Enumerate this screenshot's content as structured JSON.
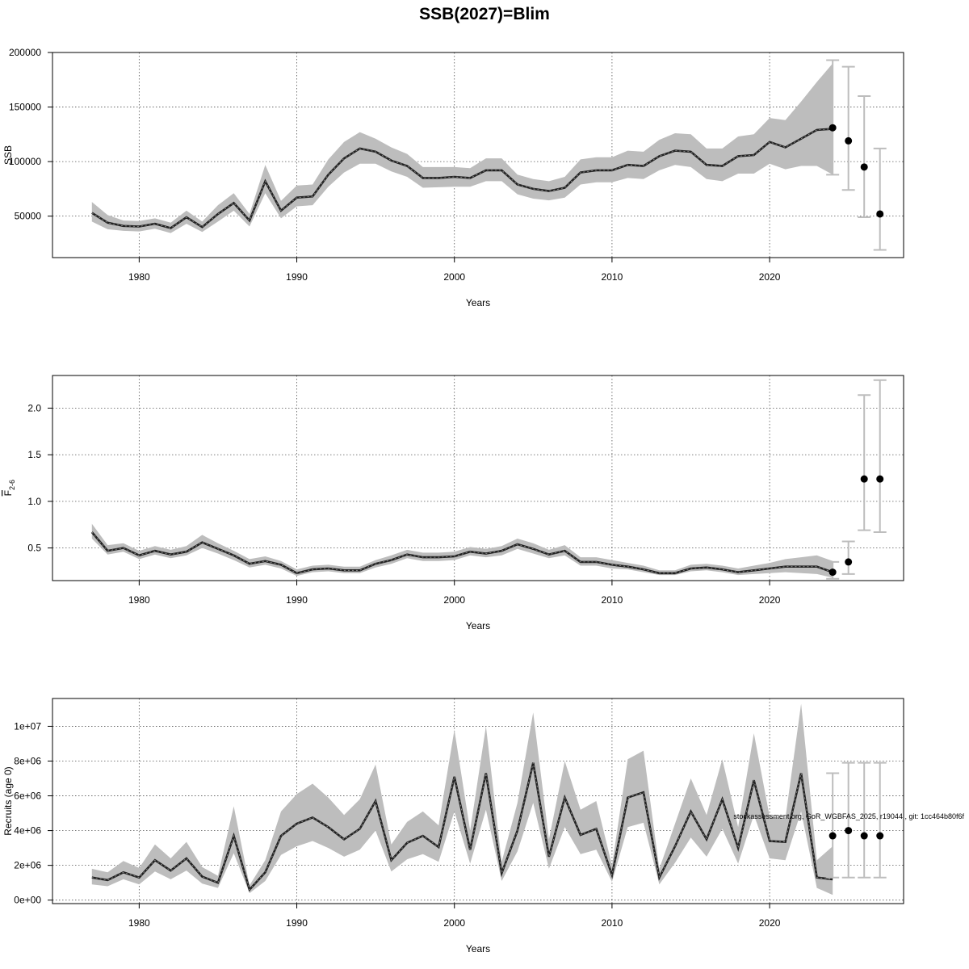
{
  "figure": {
    "title": "SSB(2027)=Blim",
    "footnote": "stockassessment.org, GoR_WGBFAS_2025, r19044 , git: 1cc464b80f6f"
  },
  "colors": {
    "band": "#bdbdbd",
    "line": "#222222",
    "errorbar": "#bdbdbd",
    "point": "#000000"
  },
  "chart_data": [
    {
      "type": "line",
      "panel": "ssb",
      "xlabel": "Years",
      "ylabel": "SSB",
      "xlim": [
        1974.5,
        2028.5
      ],
      "ylim": [
        12000,
        200000
      ],
      "xticks": [
        1980,
        1990,
        2000,
        2010,
        2020
      ],
      "yticks": [
        50000,
        100000,
        150000,
        200000
      ],
      "ytick_labels": [
        "50000",
        "100000",
        "150000",
        "200000"
      ],
      "grid": true,
      "x": [
        1977,
        1978,
        1979,
        1980,
        1981,
        1982,
        1983,
        1984,
        1985,
        1986,
        1987,
        1988,
        1989,
        1990,
        1991,
        1992,
        1993,
        1994,
        1995,
        1996,
        1997,
        1998,
        1999,
        2000,
        2001,
        2002,
        2003,
        2004,
        2005,
        2006,
        2007,
        2008,
        2009,
        2010,
        2011,
        2012,
        2013,
        2014,
        2015,
        2016,
        2017,
        2018,
        2019,
        2020,
        2021,
        2022,
        2023,
        2024
      ],
      "estimate": [
        53000,
        44000,
        41000,
        40500,
        43000,
        39000,
        49000,
        40000,
        52000,
        62000,
        46000,
        82000,
        55000,
        67000,
        68000,
        88000,
        103000,
        112000,
        109000,
        101000,
        96000,
        85000,
        85000,
        86000,
        85000,
        92000,
        92000,
        79000,
        75000,
        73000,
        76000,
        90000,
        92000,
        92000,
        97000,
        96000,
        105000,
        110000,
        109000,
        97000,
        96000,
        105000,
        106000,
        118000,
        113000,
        121000,
        129000,
        130000
      ],
      "lower": [
        45000,
        38000,
        36500,
        36000,
        38500,
        34500,
        43000,
        35500,
        45000,
        55000,
        40500,
        71000,
        48000,
        59000,
        60000,
        77000,
        90000,
        98000,
        98000,
        91000,
        86000,
        76000,
        76500,
        77000,
        77000,
        82000,
        82000,
        70000,
        66000,
        64500,
        67000,
        79000,
        81000,
        81000,
        85000,
        84000,
        92000,
        97000,
        95000,
        84000,
        82000,
        89000,
        89000,
        98000,
        93000,
        96000,
        96000,
        88000
      ],
      "upper": [
        63000,
        51000,
        46000,
        45500,
        48000,
        44000,
        55000,
        45000,
        60000,
        71000,
        52000,
        97000,
        64000,
        78000,
        79000,
        102000,
        118000,
        127000,
        121000,
        113000,
        107000,
        95000,
        95000,
        95000,
        94000,
        103000,
        103000,
        88000,
        84000,
        82000,
        86000,
        102000,
        104000,
        104000,
        110000,
        109000,
        120000,
        126000,
        125000,
        112000,
        112000,
        123000,
        125000,
        140000,
        138000,
        155000,
        173000,
        190000
      ],
      "forecast": {
        "x": [
          2024,
          2025,
          2026,
          2027
        ],
        "values": [
          131000,
          119000,
          95000,
          52000
        ],
        "lower": [
          88000,
          74000,
          49000,
          19000
        ],
        "upper": [
          193000,
          187000,
          160000,
          112000
        ]
      }
    },
    {
      "type": "line",
      "panel": "fbar",
      "xlabel": "Years",
      "ylabel": "F",
      "ylabel_subscript": "2-6",
      "xlim": [
        1974.5,
        2028.5
      ],
      "ylim": [
        0.15,
        2.35
      ],
      "xticks": [
        1980,
        1990,
        2000,
        2010,
        2020
      ],
      "yticks": [
        0.5,
        1.0,
        1.5,
        2.0
      ],
      "ytick_labels": [
        "0.5",
        "1.0",
        "1.5",
        "2.0"
      ],
      "grid": true,
      "x": [
        1977,
        1978,
        1979,
        1980,
        1981,
        1982,
        1983,
        1984,
        1985,
        1986,
        1987,
        1988,
        1989,
        1990,
        1991,
        1992,
        1993,
        1994,
        1995,
        1996,
        1997,
        1998,
        1999,
        2000,
        2001,
        2002,
        2003,
        2004,
        2005,
        2006,
        2007,
        2008,
        2009,
        2010,
        2011,
        2012,
        2013,
        2014,
        2015,
        2016,
        2017,
        2018,
        2019,
        2020,
        2021,
        2022,
        2023,
        2024
      ],
      "estimate": [
        0.67,
        0.47,
        0.5,
        0.42,
        0.47,
        0.43,
        0.46,
        0.56,
        0.49,
        0.42,
        0.33,
        0.36,
        0.32,
        0.23,
        0.27,
        0.28,
        0.26,
        0.26,
        0.33,
        0.37,
        0.43,
        0.4,
        0.4,
        0.41,
        0.46,
        0.44,
        0.47,
        0.54,
        0.49,
        0.43,
        0.47,
        0.35,
        0.35,
        0.32,
        0.3,
        0.27,
        0.23,
        0.23,
        0.28,
        0.29,
        0.27,
        0.24,
        0.26,
        0.28,
        0.3,
        0.3,
        0.3,
        0.24
      ],
      "lower": [
        0.6,
        0.43,
        0.46,
        0.38,
        0.43,
        0.39,
        0.42,
        0.5,
        0.44,
        0.37,
        0.29,
        0.32,
        0.28,
        0.2,
        0.24,
        0.25,
        0.23,
        0.23,
        0.29,
        0.33,
        0.39,
        0.36,
        0.36,
        0.37,
        0.42,
        0.4,
        0.42,
        0.49,
        0.44,
        0.39,
        0.42,
        0.31,
        0.31,
        0.28,
        0.27,
        0.24,
        0.21,
        0.21,
        0.25,
        0.26,
        0.24,
        0.21,
        0.22,
        0.23,
        0.24,
        0.23,
        0.22,
        0.18
      ],
      "upper": [
        0.76,
        0.53,
        0.55,
        0.47,
        0.52,
        0.48,
        0.52,
        0.64,
        0.55,
        0.47,
        0.38,
        0.41,
        0.36,
        0.27,
        0.31,
        0.32,
        0.3,
        0.3,
        0.37,
        0.42,
        0.48,
        0.45,
        0.45,
        0.46,
        0.51,
        0.49,
        0.52,
        0.6,
        0.55,
        0.48,
        0.53,
        0.4,
        0.4,
        0.37,
        0.34,
        0.31,
        0.26,
        0.26,
        0.32,
        0.33,
        0.31,
        0.28,
        0.31,
        0.34,
        0.38,
        0.4,
        0.42,
        0.36
      ],
      "forecast": {
        "x": [
          2024,
          2025,
          2026,
          2027
        ],
        "values": [
          0.24,
          0.35,
          1.24,
          1.24
        ],
        "lower": [
          0.17,
          0.22,
          0.69,
          0.67
        ],
        "upper": [
          0.35,
          0.57,
          2.14,
          2.3
        ]
      }
    },
    {
      "type": "line",
      "panel": "recruits",
      "xlabel": "Years",
      "ylabel": "Recruits (age 0)",
      "xlim": [
        1974.5,
        2028.5
      ],
      "ylim": [
        -200000,
        11600000
      ],
      "xticks": [
        1980,
        1990,
        2000,
        2010,
        2020
      ],
      "yticks": [
        0,
        2000000,
        4000000,
        6000000,
        8000000,
        10000000
      ],
      "ytick_labels": [
        "0e+00",
        "2e+06",
        "4e+06",
        "6e+06",
        "8e+06",
        "1e+07"
      ],
      "grid": true,
      "x": [
        1977,
        1978,
        1979,
        1980,
        1981,
        1982,
        1983,
        1984,
        1985,
        1986,
        1987,
        1988,
        1989,
        1990,
        1991,
        1992,
        1993,
        1994,
        1995,
        1996,
        1997,
        1998,
        1999,
        2000,
        2001,
        2002,
        2003,
        2004,
        2005,
        2006,
        2007,
        2008,
        2009,
        2010,
        2011,
        2012,
        2013,
        2014,
        2015,
        2016,
        2017,
        2018,
        2019,
        2020,
        2021,
        2022,
        2023,
        2024
      ],
      "estimate": [
        1300000,
        1150000,
        1600000,
        1300000,
        2300000,
        1700000,
        2400000,
        1350000,
        1000000,
        3700000,
        600000,
        1600000,
        3700000,
        4400000,
        4750000,
        4200000,
        3500000,
        4100000,
        5700000,
        2300000,
        3300000,
        3700000,
        3050000,
        7100000,
        2900000,
        7300000,
        1550000,
        4000000,
        7900000,
        2500000,
        5900000,
        3750000,
        4100000,
        1450000,
        5900000,
        6200000,
        1300000,
        3100000,
        5100000,
        3500000,
        5800000,
        3000000,
        6900000,
        3400000,
        3350000,
        7300000,
        1300000,
        1200000
      ],
      "lower": [
        900000,
        800000,
        1200000,
        900000,
        1650000,
        1200000,
        1700000,
        950000,
        700000,
        2700000,
        400000,
        1100000,
        2600000,
        3100000,
        3400000,
        3000000,
        2500000,
        2900000,
        4000000,
        1650000,
        2350000,
        2650000,
        2200000,
        5100000,
        2100000,
        5200000,
        1100000,
        2800000,
        5600000,
        1800000,
        4200000,
        2650000,
        2900000,
        1050000,
        4200000,
        4450000,
        900000,
        2150000,
        3600000,
        2500000,
        4100000,
        2100000,
        4900000,
        2400000,
        2300000,
        5100000,
        700000,
        300000
      ],
      "upper": [
        1800000,
        1600000,
        2250000,
        1850000,
        3200000,
        2400000,
        3350000,
        1900000,
        1400000,
        5400000,
        850000,
        2300000,
        5100000,
        6100000,
        6700000,
        5900000,
        4900000,
        5800000,
        7800000,
        3200000,
        4500000,
        5100000,
        4300000,
        9800000,
        4000000,
        10000000,
        2200000,
        5600000,
        10800000,
        3500000,
        8000000,
        5200000,
        5700000,
        2000000,
        8100000,
        8600000,
        1800000,
        4400000,
        7000000,
        4900000,
        8100000,
        4200000,
        9600000,
        4800000,
        4700000,
        11300000,
        2300000,
        3100000
      ],
      "forecast": {
        "x": [
          2024,
          2025,
          2026,
          2027
        ],
        "values": [
          3700000,
          4000000,
          3700000,
          3700000
        ],
        "lower": [
          1300000,
          1300000,
          1300000,
          1300000
        ],
        "upper": [
          7300000,
          7900000,
          7900000,
          7900000
        ]
      }
    }
  ]
}
